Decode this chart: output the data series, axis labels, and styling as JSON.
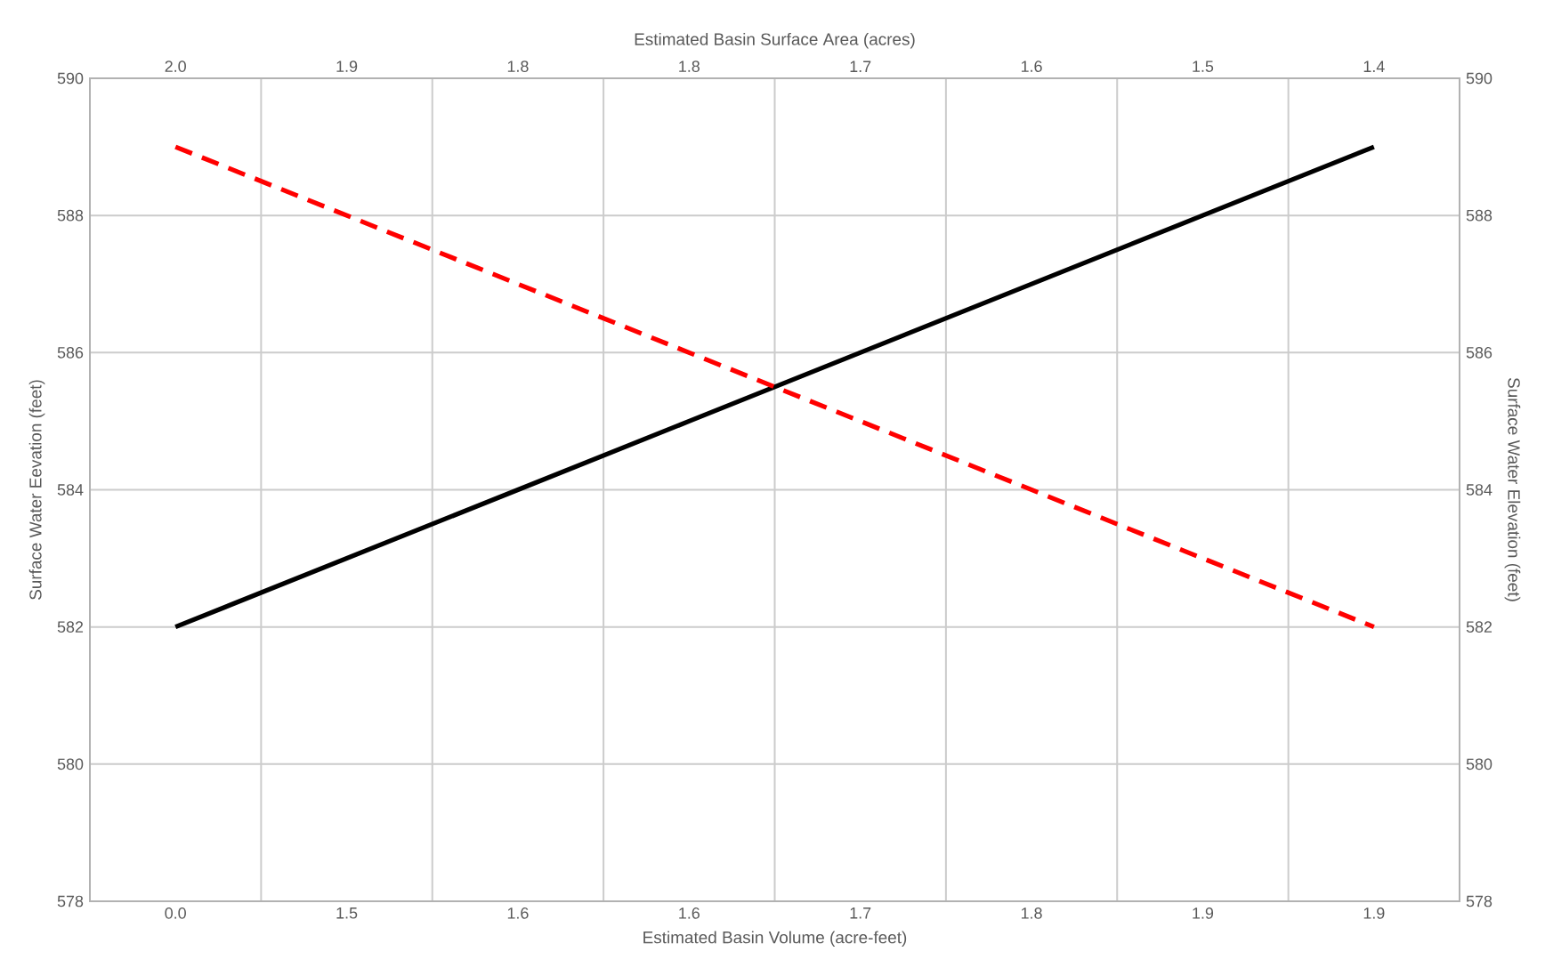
{
  "chart_data": {
    "type": "line",
    "xlabel": "Estimated Basin Volume (acre-feet)",
    "x2label": "Estimated Basin Surface Area (acres)",
    "ylabel": "Surface Water Eevation (feet)",
    "y2label": "Surface Water Elevation (feet)",
    "categories": [
      "0.0",
      "1.5",
      "1.6",
      "1.6",
      "1.7",
      "1.8",
      "1.9",
      "1.9"
    ],
    "annotations": [
      "2.0",
      "1.9",
      "1.8",
      "1.8",
      "1.7",
      "1.6",
      "1.5",
      "1.4"
    ],
    "ylim": [
      578,
      590
    ],
    "yticks": [
      578,
      580,
      582,
      584,
      586,
      588,
      590
    ],
    "y2lim": [
      578,
      590
    ],
    "y2ticks": [
      578,
      580,
      582,
      584,
      586,
      588,
      590
    ],
    "grid": true,
    "series": [
      {
        "color": "#000000",
        "line_style": "solid",
        "values": [
          582,
          583,
          584,
          585,
          586,
          587,
          588,
          589
        ]
      },
      {
        "color": "#ff0000",
        "line_style": "dashed",
        "axis": "y2",
        "values": [
          589,
          588,
          587,
          586,
          585,
          584,
          583,
          582
        ]
      }
    ]
  }
}
